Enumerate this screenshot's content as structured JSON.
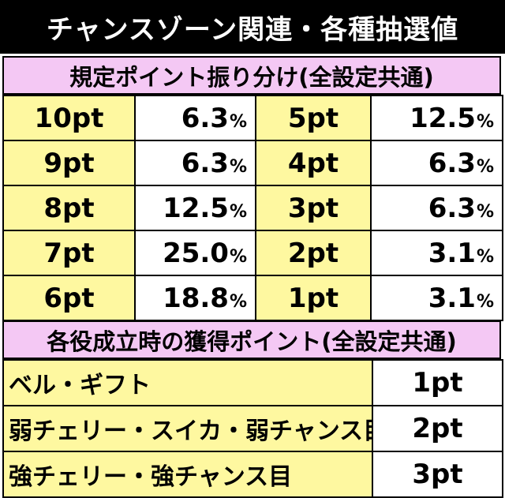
{
  "header": {
    "title": "チャンスゾーン関連・各種抽選値"
  },
  "point_section": {
    "title": "規定ポイント振り分け(全設定共通)",
    "percent_sign": "%",
    "rows": [
      {
        "left_label": "10pt",
        "left_value": "6.3",
        "right_label": "5pt",
        "right_value": "12.5"
      },
      {
        "left_label": "9pt",
        "left_value": "6.3",
        "right_label": "4pt",
        "right_value": "6.3"
      },
      {
        "left_label": "8pt",
        "left_value": "12.5",
        "right_label": "3pt",
        "right_value": "6.3"
      },
      {
        "left_label": "7pt",
        "left_value": "25.0",
        "right_label": "2pt",
        "right_value": "3.1"
      },
      {
        "left_label": "6pt",
        "left_value": "18.8",
        "right_label": "1pt",
        "right_value": "3.1"
      }
    ]
  },
  "role_section": {
    "title": "各役成立時の獲得ポイント(全設定共通)",
    "rows": [
      {
        "name": "ベル・ギフト",
        "points": "1pt"
      },
      {
        "name": "弱チェリー・スイカ・弱チャンス目",
        "points": "2pt"
      },
      {
        "name": "強チェリー・強チャンス目",
        "points": "3pt"
      }
    ]
  }
}
